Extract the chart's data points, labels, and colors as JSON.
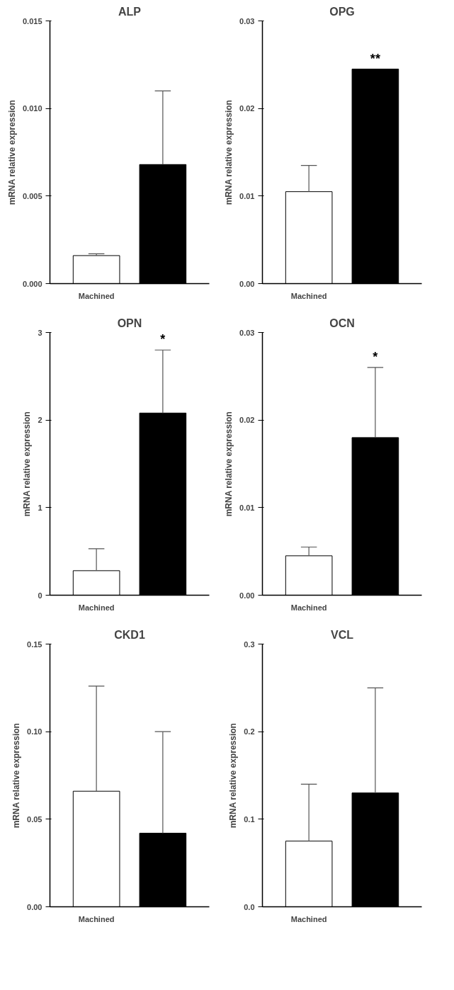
{
  "chart_data": [
    {
      "type": "bar",
      "title": "ALP",
      "ylabel": "mRNA relative expression",
      "categories": [
        "Machined",
        null
      ],
      "values": [
        0.0016,
        0.0068
      ],
      "colors": [
        "#ffffff",
        "#000000"
      ],
      "errors": [
        [
          0.0016,
          0.0017
        ],
        [
          0.0068,
          0.011
        ]
      ],
      "ylim": [
        0,
        0.015
      ],
      "yticks": [
        {
          "value": 0,
          "label": "0.000"
        },
        0.005,
        {
          "value": 0.01,
          "label": "0.010"
        },
        0.015
      ]
    },
    {
      "type": "bar",
      "title": "OPG",
      "ylabel": "mRNA relative expression",
      "categories": [
        "Machined",
        null
      ],
      "values": [
        0.0105,
        0.0245
      ],
      "colors": [
        "#ffffff",
        "#000000"
      ],
      "errors": [
        [
          0.0105,
          0.0135
        ],
        null
      ],
      "ylim": [
        0,
        0.03
      ],
      "yticks": [
        {
          "value": 0,
          "label": "0.00"
        },
        0.01,
        0.02,
        0.03
      ],
      "annotations": [
        "**"
      ]
    },
    {
      "type": "bar",
      "title": "OPN",
      "ylabel": "mRNA relative expression",
      "categories": [
        "Machined",
        null
      ],
      "values": [
        0.28,
        2.08
      ],
      "colors": [
        "#ffffff",
        "#000000"
      ],
      "errors": [
        [
          0.28,
          0.53
        ],
        [
          2.08,
          2.8
        ]
      ],
      "ylim": [
        0,
        3
      ],
      "yticks": [
        0,
        1,
        2,
        3
      ],
      "annotations": [
        "*"
      ]
    },
    {
      "type": "bar",
      "title": "OCN",
      "ylabel": "mRNA relative expression",
      "categories": [
        "Machined",
        null
      ],
      "values": [
        0.0045,
        0.018
      ],
      "colors": [
        "#ffffff",
        "#000000"
      ],
      "errors": [
        [
          0.0045,
          0.0055
        ],
        [
          0.018,
          0.026
        ]
      ],
      "ylim": [
        0,
        0.03
      ],
      "yticks": [
        {
          "value": 0,
          "label": "0.00"
        },
        0.01,
        0.02,
        0.03
      ],
      "annotations": [
        "*"
      ]
    },
    {
      "type": "bar",
      "title": "CKD1",
      "ylabel": "mRNA relative expression",
      "categories": [
        "Machined",
        null
      ],
      "values": [
        0.066,
        0.042
      ],
      "colors": [
        "#ffffff",
        "#000000"
      ],
      "errors": [
        [
          0.066,
          0.126
        ],
        [
          0.042,
          0.1
        ]
      ],
      "ylim": [
        0,
        0.15
      ],
      "yticks": [
        {
          "value": 0,
          "label": "0.00"
        },
        0.05,
        {
          "value": 0.1,
          "label": "0.10"
        },
        0.15
      ]
    },
    {
      "type": "bar",
      "title": "VCL",
      "ylabel": "mRNA relative expression",
      "categories": [
        "Machined",
        null
      ],
      "values": [
        0.075,
        0.13
      ],
      "colors": [
        "#ffffff",
        "#000000"
      ],
      "errors": [
        [
          0.075,
          0.14
        ],
        [
          0.13,
          0.25
        ]
      ],
      "ylim": [
        0,
        0.3
      ],
      "yticks": [
        {
          "value": 0,
          "label": "0.0"
        },
        0.1,
        0.2,
        0.3
      ]
    }
  ]
}
